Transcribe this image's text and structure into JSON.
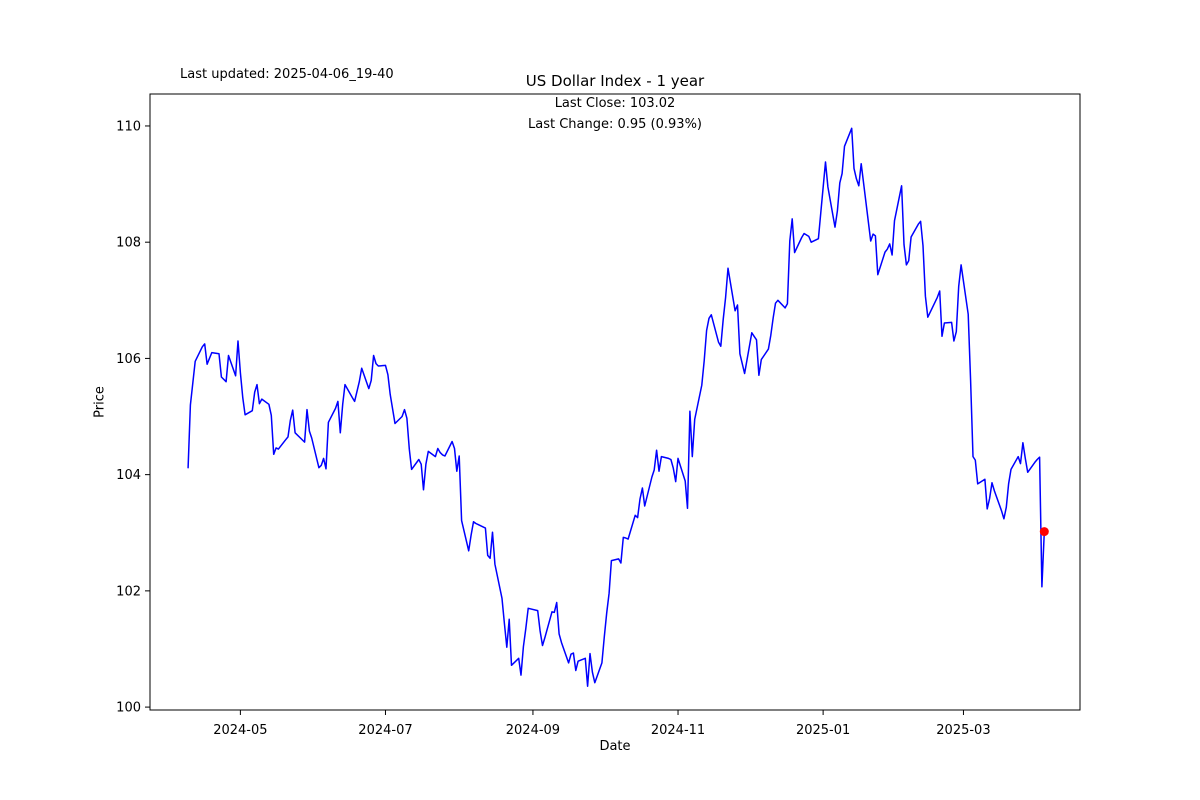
{
  "header": {
    "last_updated": "Last updated: 2025-04-06_19-40",
    "title": "US Dollar Index - 1 year"
  },
  "annotations": {
    "last_close": "Last Close: 103.02",
    "last_change": "Last Change: 0.95 (0.93%)"
  },
  "axes": {
    "xlabel": "Date",
    "ylabel": "Price"
  },
  "chart_data": {
    "type": "line",
    "title": "US Dollar Index - 1 year",
    "xlabel": "Date",
    "ylabel": "Price",
    "line_color": "#0000ff",
    "marker_color": "#ff0000",
    "grid": false,
    "legend": "none",
    "ylim": [
      100,
      110
    ],
    "y_ticks": [
      100,
      102,
      104,
      106,
      108,
      110
    ],
    "x_ticks": [
      {
        "label": "2024-05",
        "date": "2024-05-01"
      },
      {
        "label": "2024-07",
        "date": "2024-07-01"
      },
      {
        "label": "2024-09",
        "date": "2024-09-01"
      },
      {
        "label": "2024-11",
        "date": "2024-11-01"
      },
      {
        "label": "2025-01",
        "date": "2025-01-01"
      },
      {
        "label": "2025-03",
        "date": "2025-03-01"
      }
    ],
    "x_range": [
      "2024-03-24",
      "2025-04-19"
    ],
    "y_range": [
      99.95,
      110.55
    ],
    "last_close": 103.02,
    "last_change": 0.95,
    "last_change_pct": "0.93%",
    "series": [
      {
        "name": "US Dollar Index",
        "dates": [
          "2024-04-09",
          "2024-04-10",
          "2024-04-12",
          "2024-04-15",
          "2024-04-16",
          "2024-04-17",
          "2024-04-19",
          "2024-04-22",
          "2024-04-23",
          "2024-04-25",
          "2024-04-26",
          "2024-04-29",
          "2024-04-30",
          "2024-05-01",
          "2024-05-02",
          "2024-05-03",
          "2024-05-06",
          "2024-05-07",
          "2024-05-08",
          "2024-05-09",
          "2024-05-10",
          "2024-05-13",
          "2024-05-14",
          "2024-05-15",
          "2024-05-16",
          "2024-05-17",
          "2024-05-20",
          "2024-05-21",
          "2024-05-22",
          "2024-05-23",
          "2024-05-24",
          "2024-05-28",
          "2024-05-29",
          "2024-05-30",
          "2024-05-31",
          "2024-06-03",
          "2024-06-04",
          "2024-06-05",
          "2024-06-06",
          "2024-06-07",
          "2024-06-10",
          "2024-06-11",
          "2024-06-12",
          "2024-06-13",
          "2024-06-14",
          "2024-06-17",
          "2024-06-18",
          "2024-06-20",
          "2024-06-21",
          "2024-06-24",
          "2024-06-25",
          "2024-06-26",
          "2024-06-27",
          "2024-06-28",
          "2024-07-01",
          "2024-07-02",
          "2024-07-03",
          "2024-07-05",
          "2024-07-08",
          "2024-07-09",
          "2024-07-10",
          "2024-07-11",
          "2024-07-12",
          "2024-07-15",
          "2024-07-16",
          "2024-07-17",
          "2024-07-18",
          "2024-07-19",
          "2024-07-22",
          "2024-07-23",
          "2024-07-24",
          "2024-07-25",
          "2024-07-26",
          "2024-07-29",
          "2024-07-30",
          "2024-07-31",
          "2024-08-01",
          "2024-08-02",
          "2024-08-05",
          "2024-08-06",
          "2024-08-07",
          "2024-08-08",
          "2024-08-09",
          "2024-08-12",
          "2024-08-13",
          "2024-08-14",
          "2024-08-15",
          "2024-08-16",
          "2024-08-19",
          "2024-08-20",
          "2024-08-21",
          "2024-08-22",
          "2024-08-23",
          "2024-08-26",
          "2024-08-27",
          "2024-08-28",
          "2024-08-29",
          "2024-08-30",
          "2024-09-03",
          "2024-09-04",
          "2024-09-05",
          "2024-09-06",
          "2024-09-09",
          "2024-09-10",
          "2024-09-11",
          "2024-09-12",
          "2024-09-13",
          "2024-09-16",
          "2024-09-17",
          "2024-09-18",
          "2024-09-19",
          "2024-09-20",
          "2024-09-23",
          "2024-09-24",
          "2024-09-25",
          "2024-09-26",
          "2024-09-27",
          "2024-09-30",
          "2024-10-01",
          "2024-10-02",
          "2024-10-03",
          "2024-10-04",
          "2024-10-07",
          "2024-10-08",
          "2024-10-09",
          "2024-10-10",
          "2024-10-11",
          "2024-10-14",
          "2024-10-15",
          "2024-10-16",
          "2024-10-17",
          "2024-10-18",
          "2024-10-21",
          "2024-10-22",
          "2024-10-23",
          "2024-10-24",
          "2024-10-25",
          "2024-10-28",
          "2024-10-29",
          "2024-10-30",
          "2024-10-31",
          "2024-11-01",
          "2024-11-04",
          "2024-11-05",
          "2024-11-06",
          "2024-11-07",
          "2024-11-08",
          "2024-11-11",
          "2024-11-12",
          "2024-11-13",
          "2024-11-14",
          "2024-11-15",
          "2024-11-18",
          "2024-11-19",
          "2024-11-20",
          "2024-11-21",
          "2024-11-22",
          "2024-11-25",
          "2024-11-26",
          "2024-11-27",
          "2024-11-29",
          "2024-12-02",
          "2024-12-03",
          "2024-12-04",
          "2024-12-05",
          "2024-12-06",
          "2024-12-09",
          "2024-12-10",
          "2024-12-11",
          "2024-12-12",
          "2024-12-13",
          "2024-12-16",
          "2024-12-17",
          "2024-12-18",
          "2024-12-19",
          "2024-12-20",
          "2024-12-23",
          "2024-12-24",
          "2024-12-26",
          "2024-12-27",
          "2024-12-30",
          "2024-12-31",
          "2025-01-02",
          "2025-01-03",
          "2025-01-06",
          "2025-01-07",
          "2025-01-08",
          "2025-01-09",
          "2025-01-10",
          "2025-01-13",
          "2025-01-14",
          "2025-01-15",
          "2025-01-16",
          "2025-01-17",
          "2025-01-21",
          "2025-01-22",
          "2025-01-23",
          "2025-01-24",
          "2025-01-27",
          "2025-01-28",
          "2025-01-29",
          "2025-01-30",
          "2025-01-31",
          "2025-02-03",
          "2025-02-04",
          "2025-02-05",
          "2025-02-06",
          "2025-02-07",
          "2025-02-10",
          "2025-02-11",
          "2025-02-12",
          "2025-02-13",
          "2025-02-14",
          "2025-02-18",
          "2025-02-19",
          "2025-02-20",
          "2025-02-21",
          "2025-02-24",
          "2025-02-25",
          "2025-02-26",
          "2025-02-27",
          "2025-02-28",
          "2025-03-03",
          "2025-03-04",
          "2025-03-05",
          "2025-03-06",
          "2025-03-07",
          "2025-03-10",
          "2025-03-11",
          "2025-03-12",
          "2025-03-13",
          "2025-03-14",
          "2025-03-17",
          "2025-03-18",
          "2025-03-19",
          "2025-03-20",
          "2025-03-21",
          "2025-03-24",
          "2025-03-25",
          "2025-03-26",
          "2025-03-27",
          "2025-03-28",
          "2025-03-31",
          "2025-04-01",
          "2025-04-02",
          "2025-04-03",
          "2025-04-04"
        ],
        "values": [
          104.12,
          105.2,
          105.95,
          106.2,
          106.25,
          105.9,
          106.1,
          106.08,
          105.68,
          105.6,
          106.05,
          105.7,
          106.3,
          105.75,
          105.32,
          105.03,
          105.1,
          105.42,
          105.55,
          105.22,
          105.3,
          105.21,
          105.02,
          104.35,
          104.46,
          104.44,
          104.6,
          104.65,
          104.93,
          105.11,
          104.72,
          104.56,
          105.12,
          104.75,
          104.63,
          104.12,
          104.16,
          104.28,
          104.1,
          104.9,
          105.14,
          105.26,
          104.72,
          105.21,
          105.55,
          105.33,
          105.26,
          105.6,
          105.83,
          105.48,
          105.62,
          106.05,
          105.91,
          105.87,
          105.88,
          105.72,
          105.38,
          104.88,
          105.0,
          105.12,
          104.97,
          104.44,
          104.09,
          104.26,
          104.18,
          103.74,
          104.18,
          104.4,
          104.31,
          104.45,
          104.38,
          104.34,
          104.32,
          104.57,
          104.45,
          104.06,
          104.32,
          103.21,
          102.69,
          102.96,
          103.19,
          103.16,
          103.14,
          103.08,
          102.61,
          102.56,
          103.01,
          102.46,
          101.87,
          101.44,
          101.03,
          101.51,
          100.72,
          100.84,
          100.55,
          101.04,
          101.35,
          101.7,
          101.66,
          101.31,
          101.06,
          101.19,
          101.64,
          101.63,
          101.8,
          101.26,
          101.11,
          100.76,
          100.91,
          100.93,
          100.63,
          100.79,
          100.84,
          100.36,
          100.92,
          100.6,
          100.42,
          100.76,
          101.21,
          101.62,
          101.96,
          102.52,
          102.55,
          102.48,
          102.92,
          102.91,
          102.89,
          103.3,
          103.26,
          103.58,
          103.77,
          103.46,
          103.96,
          104.08,
          104.42,
          104.06,
          104.31,
          104.28,
          104.26,
          104.11,
          103.88,
          104.28,
          103.89,
          103.42,
          105.09,
          104.31,
          104.95,
          105.54,
          105.96,
          106.48,
          106.69,
          106.75,
          106.28,
          106.21,
          106.67,
          107.05,
          107.55,
          106.82,
          106.92,
          106.08,
          105.74,
          106.44,
          106.38,
          106.32,
          105.71,
          105.98,
          106.16,
          106.4,
          106.7,
          106.95,
          107.0,
          106.87,
          106.94,
          108.02,
          108.4,
          107.82,
          108.08,
          108.15,
          108.1,
          108.0,
          108.06,
          108.49,
          109.38,
          108.95,
          108.26,
          108.54,
          109.02,
          109.18,
          109.65,
          109.96,
          109.27,
          109.09,
          108.97,
          109.35,
          108.02,
          108.14,
          108.11,
          107.44,
          107.83,
          107.88,
          107.97,
          107.78,
          108.37,
          108.97,
          107.96,
          107.61,
          107.68,
          108.09,
          108.31,
          108.36,
          107.94,
          107.07,
          106.71,
          107.05,
          107.16,
          106.38,
          106.61,
          106.62,
          106.3,
          106.46,
          107.24,
          107.61,
          106.76,
          105.62,
          104.31,
          104.25,
          103.84,
          103.92,
          103.41,
          103.59,
          103.86,
          103.72,
          103.38,
          103.24,
          103.44,
          103.84,
          104.09,
          104.31,
          104.19,
          104.55,
          104.28,
          104.04,
          104.21,
          104.26,
          104.3,
          102.07,
          103.02
        ]
      }
    ]
  }
}
